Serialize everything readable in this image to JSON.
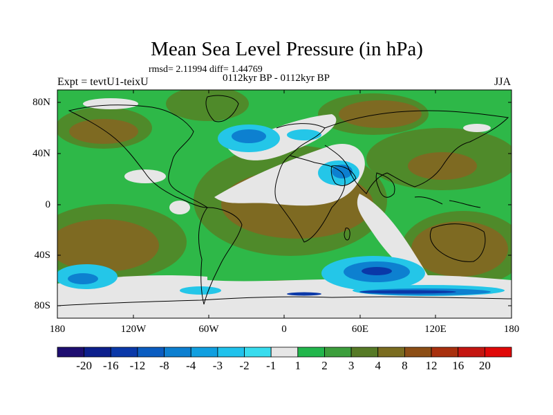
{
  "title": "Mean Sea Level Pressure (in hPa)",
  "stats": "rmsd= 2.11994 diff= 1.44769",
  "subtitle": "0112kyr BP - 0112kyr BP",
  "experiment": "Expt = tevtU1-teixU",
  "season": "JJA",
  "lat_labels": [
    "80N",
    "40N",
    "0",
    "40S",
    "80S"
  ],
  "lon_labels": [
    "180",
    "120W",
    "60W",
    "0",
    "60E",
    "120E",
    "180"
  ],
  "colorbar": {
    "labels": [
      "-20",
      "-16",
      "-12",
      "-8",
      "-4",
      "-3",
      "-2",
      "-1",
      "1",
      "2",
      "3",
      "4",
      "8",
      "12",
      "16",
      "20"
    ],
    "colors": [
      "#1e0e70",
      "#0c1f8c",
      "#0a38a8",
      "#0a5cc0",
      "#0c7fd0",
      "#109fe0",
      "#20c2ec",
      "#38dcee",
      "#e6e6e6",
      "#22b64c",
      "#3c9e3c",
      "#567a26",
      "#7a6c20",
      "#8c4e16",
      "#a8300e",
      "#c41610",
      "#e00808"
    ]
  },
  "colors": {
    "land_line": "#000000",
    "neutral": "#e6e6e6",
    "green": "#2eb848",
    "olive": "#4f8a2a",
    "brown": "#7e6a22",
    "cyan": "#24c6e8",
    "blue": "#0d80d0",
    "deep_blue": "#0a38a8"
  }
}
